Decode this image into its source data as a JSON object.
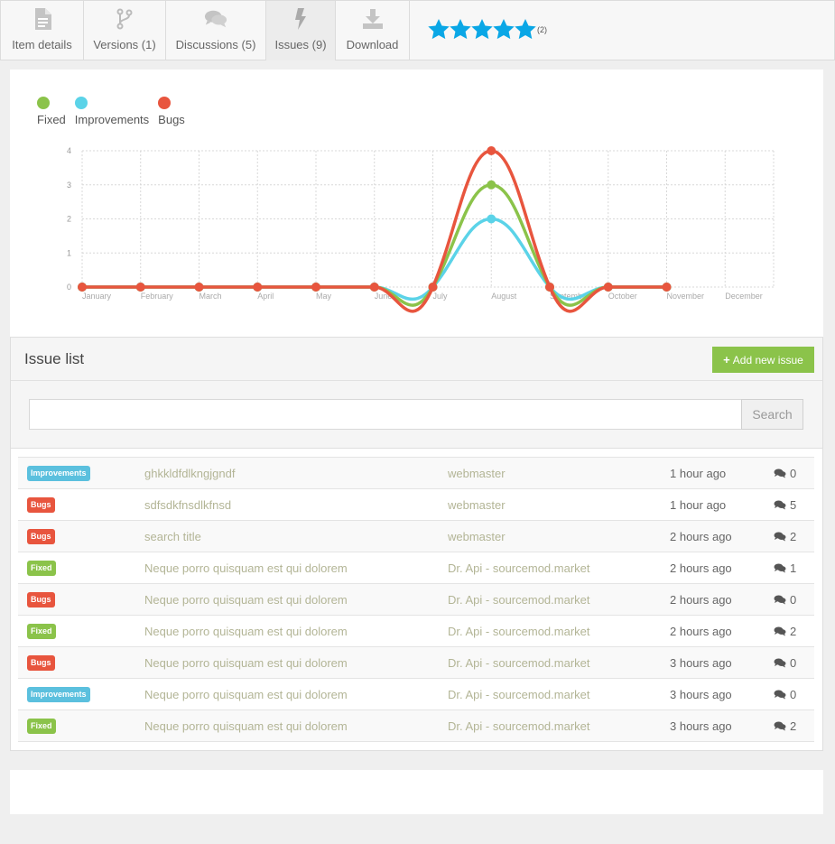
{
  "tabs": [
    {
      "label": "Item details",
      "icon": "document-icon"
    },
    {
      "label": "Versions (1)",
      "icon": "branch-icon"
    },
    {
      "label": "Discussions (5)",
      "icon": "comments-icon"
    },
    {
      "label": "Issues (9)",
      "icon": "bolt-icon"
    },
    {
      "label": "Download",
      "icon": "download-icon"
    }
  ],
  "rating": {
    "stars": 5,
    "count": "(2)",
    "color": "#0aa7e6"
  },
  "chart_data": {
    "type": "line",
    "categories": [
      "January",
      "February",
      "March",
      "April",
      "May",
      "June",
      "July",
      "August",
      "September",
      "October",
      "November",
      "December"
    ],
    "ylim": [
      0,
      4
    ],
    "yticks": [
      "0",
      "1",
      "2",
      "3",
      "4"
    ],
    "legend_position": "top-left",
    "grid": true,
    "series": [
      {
        "name": "Fixed",
        "color": "#8bc34a",
        "values": [
          0,
          0,
          0,
          0,
          0,
          0,
          0,
          3,
          0,
          0,
          0,
          null
        ]
      },
      {
        "name": "Improvements",
        "color": "#5bd3e8",
        "values": [
          0,
          0,
          0,
          0,
          0,
          0,
          0,
          2,
          0,
          0,
          0,
          null
        ]
      },
      {
        "name": "Bugs",
        "color": "#e8553e",
        "values": [
          0,
          0,
          0,
          0,
          0,
          0,
          0,
          4,
          0,
          0,
          0,
          null
        ]
      }
    ]
  },
  "issue_list": {
    "title": "Issue list",
    "add_button": "Add new issue",
    "search_button": "Search",
    "search_value": "",
    "rows": [
      {
        "type": "Improvements",
        "title": "ghkkldfdlkngjgndf",
        "author": "webmaster",
        "time": "1 hour ago",
        "comments": "0"
      },
      {
        "type": "Bugs",
        "title": "sdfsdkfnsdlkfnsd",
        "author": "webmaster",
        "time": "1 hour ago",
        "comments": "5"
      },
      {
        "type": "Bugs",
        "title": "search title",
        "author": "webmaster",
        "time": "2 hours ago",
        "comments": "2"
      },
      {
        "type": "Fixed",
        "title": "Neque porro quisquam est qui dolorem",
        "author": "Dr. Api - sourcemod.market",
        "time": "2 hours ago",
        "comments": "1"
      },
      {
        "type": "Bugs",
        "title": "Neque porro quisquam est qui dolorem",
        "author": "Dr. Api - sourcemod.market",
        "time": "2 hours ago",
        "comments": "0"
      },
      {
        "type": "Fixed",
        "title": "Neque porro quisquam est qui dolorem",
        "author": "Dr. Api - sourcemod.market",
        "time": "2 hours ago",
        "comments": "2"
      },
      {
        "type": "Bugs",
        "title": "Neque porro quisquam est qui dolorem",
        "author": "Dr. Api - sourcemod.market",
        "time": "3 hours ago",
        "comments": "0"
      },
      {
        "type": "Improvements",
        "title": "Neque porro quisquam est qui dolorem",
        "author": "Dr. Api - sourcemod.market",
        "time": "3 hours ago",
        "comments": "0"
      },
      {
        "type": "Fixed",
        "title": "Neque porro quisquam est qui dolorem",
        "author": "Dr. Api - sourcemod.market",
        "time": "3 hours ago",
        "comments": "2"
      }
    ]
  }
}
